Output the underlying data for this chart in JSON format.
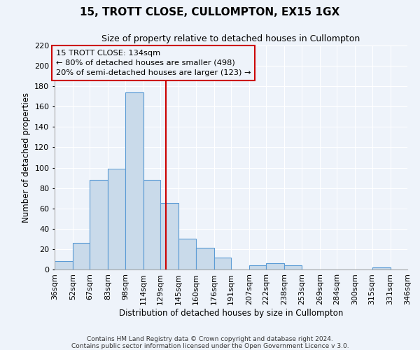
{
  "title": "15, TROTT CLOSE, CULLOMPTON, EX15 1GX",
  "subtitle": "Size of property relative to detached houses in Cullompton",
  "xlabel": "Distribution of detached houses by size in Cullompton",
  "ylabel": "Number of detached properties",
  "bin_edges": [
    36,
    52,
    67,
    83,
    98,
    114,
    129,
    145,
    160,
    176,
    191,
    207,
    222,
    238,
    253,
    269,
    284,
    300,
    315,
    331,
    346
  ],
  "bin_labels": [
    "36sqm",
    "52sqm",
    "67sqm",
    "83sqm",
    "98sqm",
    "114sqm",
    "129sqm",
    "145sqm",
    "160sqm",
    "176sqm",
    "191sqm",
    "207sqm",
    "222sqm",
    "238sqm",
    "253sqm",
    "269sqm",
    "284sqm",
    "300sqm",
    "315sqm",
    "331sqm",
    "346sqm"
  ],
  "counts": [
    8,
    26,
    88,
    99,
    174,
    88,
    65,
    30,
    21,
    12,
    0,
    4,
    6,
    4,
    0,
    0,
    0,
    0,
    2,
    0
  ],
  "bar_color": "#c9daea",
  "bar_edge_color": "#5b9bd5",
  "vline_x": 134,
  "vline_color": "#cc0000",
  "ylim": [
    0,
    220
  ],
  "yticks": [
    0,
    20,
    40,
    60,
    80,
    100,
    120,
    140,
    160,
    180,
    200,
    220
  ],
  "annotation_title": "15 TROTT CLOSE: 134sqm",
  "annotation_line1": "← 80% of detached houses are smaller (498)",
  "annotation_line2": "20% of semi-detached houses are larger (123) →",
  "footer1": "Contains HM Land Registry data © Crown copyright and database right 2024.",
  "footer2": "Contains public sector information licensed under the Open Government Licence v 3.0.",
  "background_color": "#eef3fa",
  "grid_color": "#ffffff",
  "box_edge_color": "#cc0000"
}
